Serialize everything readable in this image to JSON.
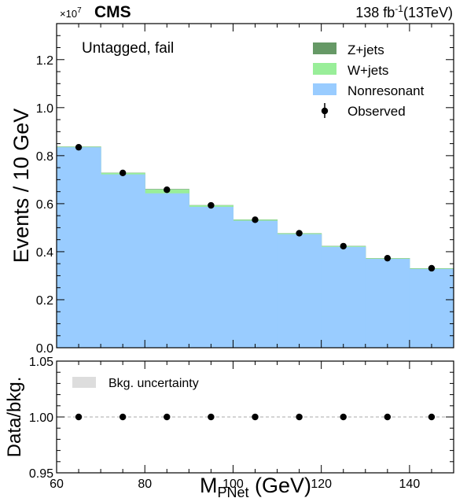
{
  "header": {
    "exponent": "×10",
    "exponent_power": "7",
    "experiment": "CMS",
    "lumi_value": "138 fb",
    "lumi_power": "-1",
    "lumi_energy": "(13TeV)"
  },
  "region_label": "Untagged, fail",
  "legend": [
    {
      "label": "Z+jets",
      "color": "#669966",
      "kind": "fill"
    },
    {
      "label": "W+jets",
      "color": "#99ee99",
      "kind": "fill"
    },
    {
      "label": "Nonresonant",
      "color": "#99ccff",
      "kind": "fill"
    },
    {
      "label": "Observed",
      "color": "#000000",
      "kind": "marker"
    }
  ],
  "ratio_legend": {
    "label": "Bkg. uncertainty",
    "color": "#dddddd"
  },
  "chart_data": [
    {
      "type": "bar",
      "stacked": true,
      "ylabel": "Events / 10 GeV",
      "xlim": [
        60,
        150
      ],
      "ylim": [
        0,
        1.35
      ],
      "y_scale_factor": "1e7",
      "y_ticks": [
        "0.0",
        "0.2",
        "0.4",
        "0.6",
        "0.8",
        "1.0",
        "1.2"
      ],
      "y_tick_values": [
        0.0,
        0.2,
        0.4,
        0.6,
        0.8,
        1.0,
        1.2
      ],
      "bin_edges": [
        60,
        70,
        80,
        90,
        100,
        110,
        120,
        130,
        140,
        150
      ],
      "series": [
        {
          "name": "Nonresonant",
          "values": [
            0.835,
            0.722,
            0.643,
            0.587,
            0.529,
            0.473,
            0.42,
            0.37,
            0.328
          ]
        },
        {
          "name": "W+jets",
          "values": [
            0.002,
            0.006,
            0.016,
            0.006,
            0.004,
            0.003,
            0.003,
            0.002,
            0.002
          ]
        },
        {
          "name": "Z+jets",
          "values": [
            0.001,
            0.001,
            0.002,
            0.001,
            0.001,
            0.001,
            0.001,
            0.001,
            0.001
          ]
        }
      ],
      "observed": {
        "name": "Observed",
        "x": [
          65,
          75,
          85,
          95,
          105,
          115,
          125,
          135,
          145
        ],
        "y": [
          0.835,
          0.728,
          0.658,
          0.593,
          0.533,
          0.477,
          0.423,
          0.373,
          0.331
        ]
      },
      "grid": false
    },
    {
      "type": "scatter",
      "ylabel": "Data/bkg.",
      "xlabel": "M",
      "xlabel_sub": "PNet",
      "xlabel_unit": " (GeV)",
      "xlim": [
        60,
        150
      ],
      "x_ticks": [
        "60",
        "80",
        "100",
        "120",
        "140"
      ],
      "x_tick_values": [
        60,
        80,
        100,
        120,
        140
      ],
      "ylim": [
        0.95,
        1.05
      ],
      "y_ticks": [
        "0.95",
        "1.00",
        "1.05"
      ],
      "y_tick_values": [
        0.95,
        1.0,
        1.05
      ],
      "reference_line": 1.0,
      "x": [
        65,
        75,
        85,
        95,
        105,
        115,
        125,
        135,
        145
      ],
      "y": [
        1.0,
        1.0,
        1.0,
        1.0,
        1.0,
        1.0,
        1.0,
        1.0,
        1.0
      ]
    }
  ]
}
